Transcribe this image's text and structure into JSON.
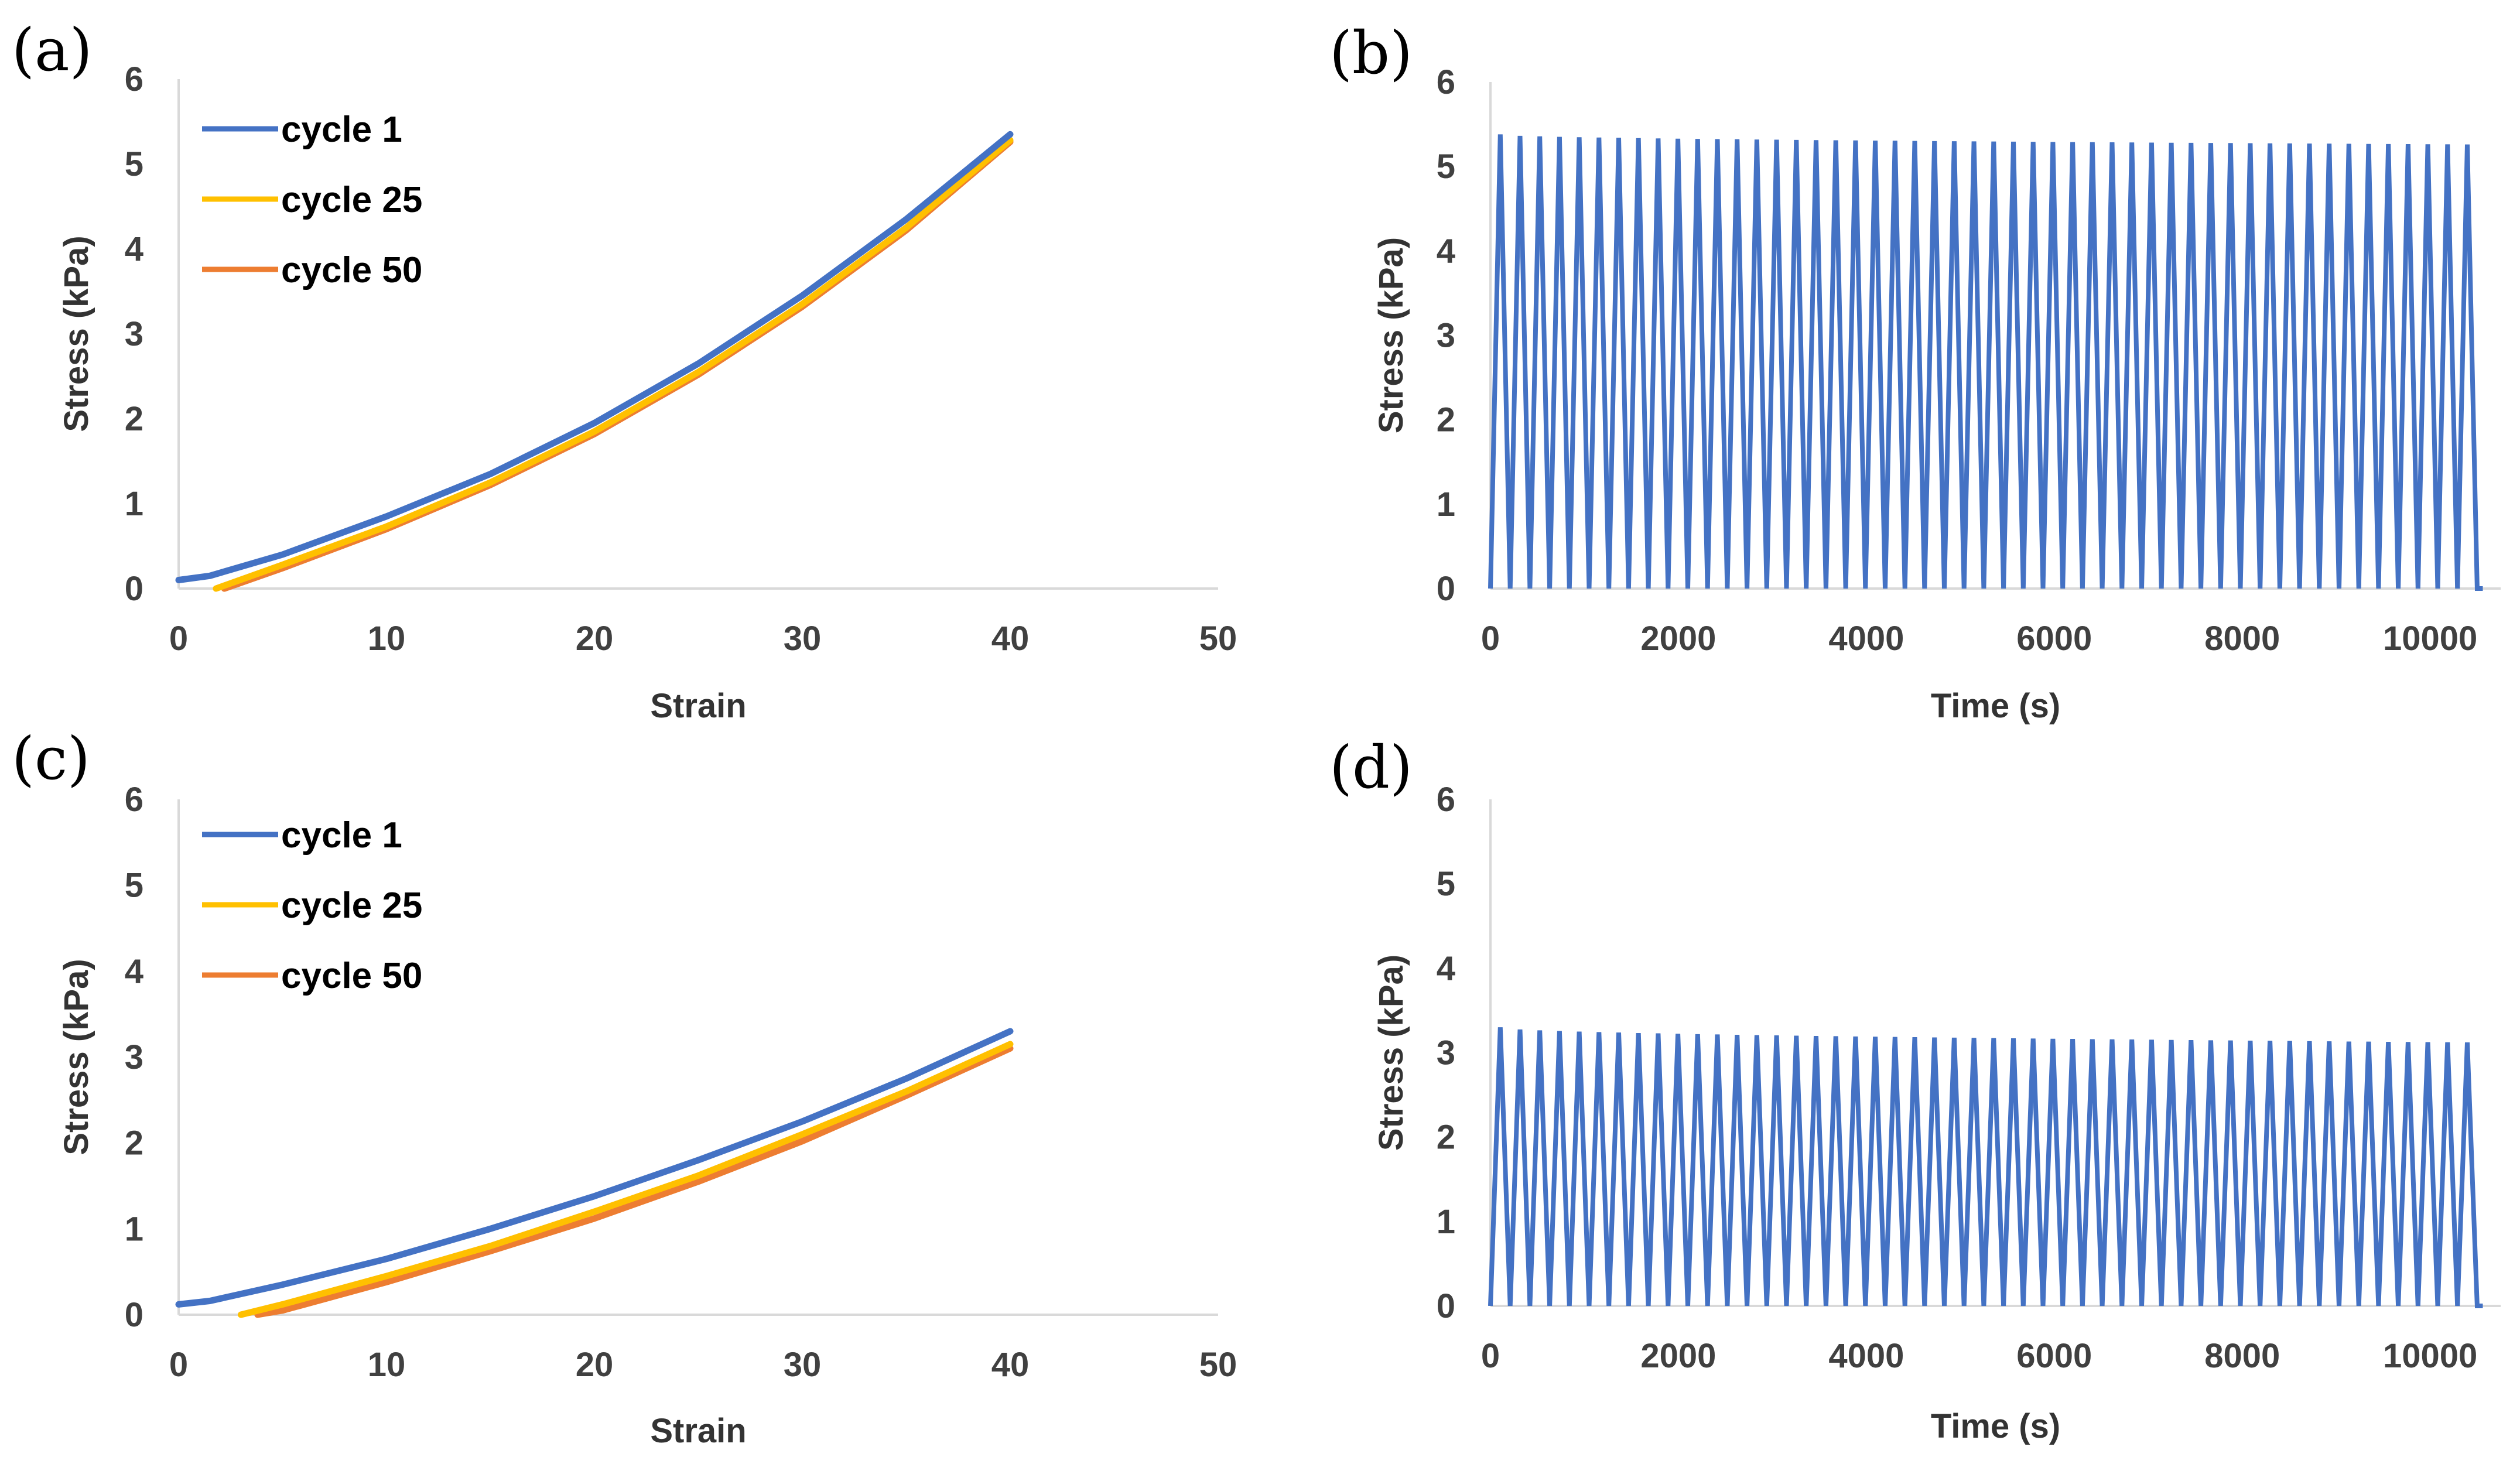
{
  "chart_data": [
    {
      "panel": "(a)",
      "type": "line",
      "xlabel": "Strain",
      "ylabel": "Stress (kPa)",
      "xlim": [
        0,
        50
      ],
      "ylim": [
        0,
        6
      ],
      "xticks": [
        "0",
        "10",
        "20",
        "30",
        "40",
        "50"
      ],
      "yticks": [
        "0",
        "1",
        "2",
        "3",
        "4",
        "5",
        "6"
      ],
      "legend_position": "top-left",
      "colors": {
        "cycle 1": "#4472c4",
        "cycle 25": "#ffc000",
        "cycle 50": "#ed7d31"
      },
      "series": [
        {
          "name": "cycle 1",
          "x": [
            0,
            1.5,
            5,
            10,
            15,
            20,
            25,
            30,
            35,
            40
          ],
          "y": [
            0.1,
            0.15,
            0.4,
            0.85,
            1.35,
            1.95,
            2.65,
            3.45,
            4.35,
            5.35
          ]
        },
        {
          "name": "cycle 25",
          "x": [
            1.8,
            5,
            10,
            15,
            20,
            25,
            30,
            35,
            40
          ],
          "y": [
            0,
            0.28,
            0.73,
            1.25,
            1.85,
            2.55,
            3.35,
            4.25,
            5.28
          ]
        },
        {
          "name": "cycle 50",
          "x": [
            2.2,
            5,
            10,
            15,
            20,
            25,
            30,
            35,
            40
          ],
          "y": [
            0,
            0.24,
            0.7,
            1.22,
            1.82,
            2.52,
            3.32,
            4.22,
            5.26
          ]
        }
      ]
    },
    {
      "panel": "(b)",
      "type": "line",
      "xlabel": "Time (s)",
      "ylabel": "Stress (kPa)",
      "xlim": [
        0,
        10750
      ],
      "ylim": [
        0,
        6
      ],
      "xticks": [
        "0",
        "2000",
        "4000",
        "6000",
        "8000",
        "10000"
      ],
      "yticks": [
        "0",
        "1",
        "2",
        "3",
        "4",
        "5",
        "6"
      ],
      "colors": {
        "signal": "#4472c4"
      },
      "cycles": 50,
      "period_s": 210,
      "peak_first": 5.38,
      "peak_last": 5.26,
      "series": [
        {
          "name": "stress",
          "values": "triangular wave, 50 cycles"
        }
      ]
    },
    {
      "panel": "(c)",
      "type": "line",
      "xlabel": "Strain",
      "ylabel": "Stress (kPa)",
      "xlim": [
        0,
        50
      ],
      "ylim": [
        0,
        6
      ],
      "xticks": [
        "0",
        "10",
        "20",
        "30",
        "40",
        "50"
      ],
      "yticks": [
        "0",
        "1",
        "2",
        "3",
        "4",
        "5",
        "6"
      ],
      "legend_position": "top-left",
      "colors": {
        "cycle 1": "#4472c4",
        "cycle 25": "#ffc000",
        "cycle 50": "#ed7d31"
      },
      "series": [
        {
          "name": "cycle 1",
          "x": [
            0,
            1.5,
            5,
            10,
            15,
            20,
            25,
            30,
            35,
            40
          ],
          "y": [
            0.12,
            0.16,
            0.35,
            0.65,
            1.0,
            1.38,
            1.8,
            2.25,
            2.75,
            3.3
          ]
        },
        {
          "name": "cycle 25",
          "x": [
            3,
            5,
            10,
            15,
            20,
            25,
            30,
            35,
            40
          ],
          "y": [
            0,
            0.12,
            0.45,
            0.8,
            1.2,
            1.62,
            2.1,
            2.6,
            3.15
          ]
        },
        {
          "name": "cycle 50",
          "x": [
            3.8,
            5,
            10,
            15,
            20,
            25,
            30,
            35,
            40
          ],
          "y": [
            0,
            0.05,
            0.38,
            0.74,
            1.12,
            1.55,
            2.02,
            2.55,
            3.1
          ]
        }
      ]
    },
    {
      "panel": "(d)",
      "type": "line",
      "xlabel": "Time (s)",
      "ylabel": "Stress (kPa)",
      "xlim": [
        0,
        10750
      ],
      "ylim": [
        0,
        6
      ],
      "xticks": [
        "0",
        "2000",
        "4000",
        "6000",
        "8000",
        "10000"
      ],
      "yticks": [
        "0",
        "1",
        "2",
        "3",
        "4",
        "5",
        "6"
      ],
      "colors": {
        "signal": "#4472c4"
      },
      "cycles": 50,
      "period_s": 210,
      "peak_first": 3.3,
      "peak_last": 3.12,
      "series": [
        {
          "name": "stress",
          "values": "triangular wave, 50 cycles"
        }
      ]
    }
  ]
}
